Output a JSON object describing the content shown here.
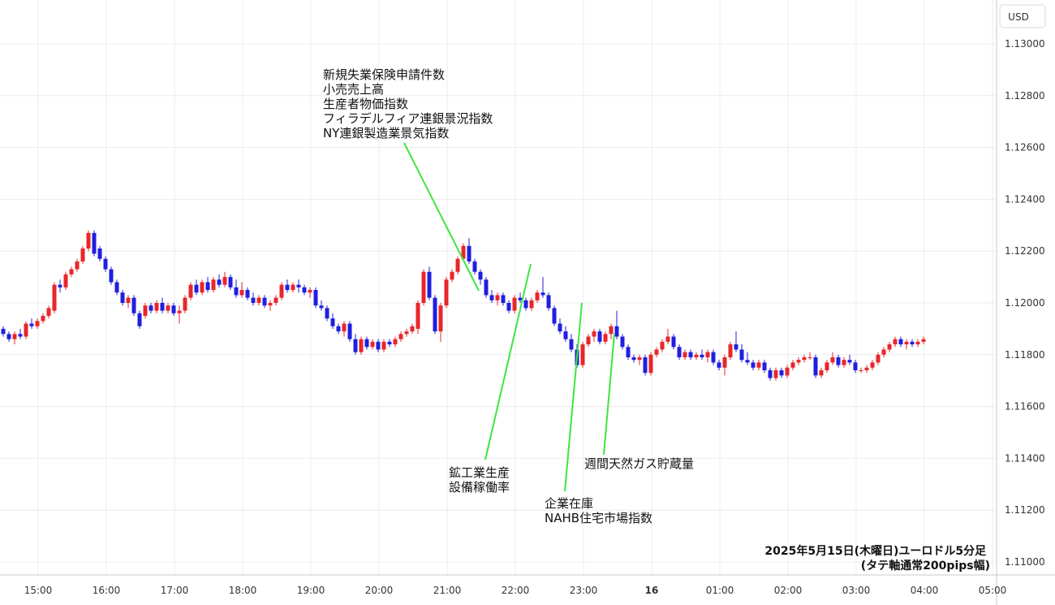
{
  "chart_data": {
    "type": "candlestick",
    "currency_label": "USD",
    "caption": [
      "2025年5月15日(木曜日)ユーロドル5分足",
      "(タテ軸通常200pips幅)"
    ],
    "ylim": [
      1.11,
      1.131
    ],
    "y_ticks": [
      "1.13000",
      "1.12800",
      "1.12600",
      "1.12400",
      "1.12200",
      "1.12000",
      "1.11800",
      "1.11600",
      "1.11400",
      "1.11200",
      "1.11000"
    ],
    "x_ticks": [
      "15:00",
      "16:00",
      "17:00",
      "18:00",
      "19:00",
      "20:00",
      "21:00",
      "22:00",
      "23:00",
      "16",
      "01:00",
      "02:00",
      "03:00",
      "04:00",
      "05:00"
    ],
    "bullish_color": "#e8262a",
    "bearish_color": "#1f1fe0",
    "line_color": "#3ee63e",
    "candles": [
      [
        1.119,
        1.1191,
        1.1187,
        1.1188
      ],
      [
        1.1188,
        1.1189,
        1.1185,
        1.1186
      ],
      [
        1.1186,
        1.1189,
        1.1184,
        1.1188
      ],
      [
        1.1188,
        1.119,
        1.1186,
        1.1187
      ],
      [
        1.1187,
        1.1193,
        1.1186,
        1.1192
      ],
      [
        1.1192,
        1.1194,
        1.119,
        1.1191
      ],
      [
        1.1191,
        1.1194,
        1.119,
        1.1193
      ],
      [
        1.1193,
        1.1196,
        1.1192,
        1.1195
      ],
      [
        1.1195,
        1.1199,
        1.1194,
        1.1198
      ],
      [
        1.1197,
        1.1208,
        1.1196,
        1.1207
      ],
      [
        1.1207,
        1.1209,
        1.1204,
        1.1206
      ],
      [
        1.1206,
        1.1212,
        1.1205,
        1.1211
      ],
      [
        1.1211,
        1.1214,
        1.121,
        1.1213
      ],
      [
        1.1213,
        1.1217,
        1.1212,
        1.1216
      ],
      [
        1.1216,
        1.1222,
        1.1215,
        1.1221
      ],
      [
        1.1221,
        1.1228,
        1.122,
        1.1227
      ],
      [
        1.1227,
        1.1228,
        1.1218,
        1.1219
      ],
      [
        1.1221,
        1.1222,
        1.1216,
        1.1217
      ],
      [
        1.1217,
        1.1218,
        1.1212,
        1.1213
      ],
      [
        1.1213,
        1.1214,
        1.1207,
        1.1208
      ],
      [
        1.1208,
        1.1209,
        1.1203,
        1.1204
      ],
      [
        1.1204,
        1.1205,
        1.1199,
        1.12
      ],
      [
        1.12,
        1.1203,
        1.1198,
        1.1202
      ],
      [
        1.1202,
        1.1203,
        1.1195,
        1.1196
      ],
      [
        1.1196,
        1.1197,
        1.119,
        1.1191
      ],
      [
        1.1195,
        1.12,
        1.1194,
        1.1199
      ],
      [
        1.1199,
        1.12,
        1.1196,
        1.1197
      ],
      [
        1.1197,
        1.1201,
        1.1196,
        1.12
      ],
      [
        1.12,
        1.1202,
        1.1196,
        1.1197
      ],
      [
        1.1197,
        1.12,
        1.1196,
        1.1199
      ],
      [
        1.1199,
        1.12,
        1.1195,
        1.1196
      ],
      [
        1.1196,
        1.1199,
        1.1192,
        1.1197
      ],
      [
        1.1197,
        1.1203,
        1.1196,
        1.1202
      ],
      [
        1.1202,
        1.1208,
        1.1201,
        1.1207
      ],
      [
        1.1207,
        1.1209,
        1.1203,
        1.1204
      ],
      [
        1.1204,
        1.1209,
        1.1203,
        1.1208
      ],
      [
        1.1208,
        1.121,
        1.1204,
        1.1205
      ],
      [
        1.1205,
        1.121,
        1.1204,
        1.1209
      ],
      [
        1.1209,
        1.1211,
        1.1206,
        1.1207
      ],
      [
        1.1207,
        1.1212,
        1.1206,
        1.121
      ],
      [
        1.121,
        1.1211,
        1.1205,
        1.1206
      ],
      [
        1.1206,
        1.1209,
        1.1202,
        1.1203
      ],
      [
        1.1203,
        1.1208,
        1.1202,
        1.1205
      ],
      [
        1.1205,
        1.1206,
        1.1201,
        1.1202
      ],
      [
        1.1202,
        1.1204,
        1.1199,
        1.12
      ],
      [
        1.12,
        1.1203,
        1.1199,
        1.1202
      ],
      [
        1.1202,
        1.1203,
        1.1198,
        1.1199
      ],
      [
        1.1199,
        1.1201,
        1.1197,
        1.12
      ],
      [
        1.12,
        1.1203,
        1.1199,
        1.1202
      ],
      [
        1.1202,
        1.1208,
        1.1201,
        1.1207
      ],
      [
        1.1207,
        1.1209,
        1.1204,
        1.1205
      ],
      [
        1.1205,
        1.1208,
        1.1204,
        1.1207
      ],
      [
        1.1207,
        1.1209,
        1.1204,
        1.1206
      ],
      [
        1.1206,
        1.1207,
        1.1203,
        1.1204
      ],
      [
        1.1204,
        1.1206,
        1.1202,
        1.1205
      ],
      [
        1.1205,
        1.1206,
        1.1198,
        1.1199
      ],
      [
        1.1199,
        1.1201,
        1.1197,
        1.1198
      ],
      [
        1.1198,
        1.1199,
        1.1193,
        1.1194
      ],
      [
        1.1194,
        1.1196,
        1.119,
        1.1191
      ],
      [
        1.1191,
        1.1192,
        1.1188,
        1.1189
      ],
      [
        1.1189,
        1.1193,
        1.1187,
        1.1192
      ],
      [
        1.1192,
        1.1193,
        1.1185,
        1.1186
      ],
      [
        1.1186,
        1.1188,
        1.118,
        1.1181
      ],
      [
        1.1181,
        1.1187,
        1.118,
        1.1186
      ],
      [
        1.1186,
        1.1187,
        1.1182,
        1.1183
      ],
      [
        1.1183,
        1.1186,
        1.1182,
        1.1185
      ],
      [
        1.1185,
        1.1186,
        1.1181,
        1.1182
      ],
      [
        1.1182,
        1.1186,
        1.1181,
        1.1185
      ],
      [
        1.1185,
        1.1186,
        1.1183,
        1.1184
      ],
      [
        1.1184,
        1.1187,
        1.1183,
        1.1186
      ],
      [
        1.1186,
        1.1189,
        1.1185,
        1.1188
      ],
      [
        1.1188,
        1.119,
        1.1187,
        1.1189
      ],
      [
        1.1189,
        1.1192,
        1.1188,
        1.1191
      ],
      [
        1.119,
        1.1201,
        1.1188,
        1.12
      ],
      [
        1.12,
        1.1213,
        1.1199,
        1.1212
      ],
      [
        1.1212,
        1.1214,
        1.1201,
        1.1202
      ],
      [
        1.1202,
        1.1203,
        1.1188,
        1.1189
      ],
      [
        1.1189,
        1.12,
        1.1185,
        1.1199
      ],
      [
        1.1199,
        1.121,
        1.1198,
        1.1209
      ],
      [
        1.1209,
        1.1213,
        1.1208,
        1.1212
      ],
      [
        1.1212,
        1.1218,
        1.1211,
        1.1217
      ],
      [
        1.1217,
        1.1223,
        1.1216,
        1.1222
      ],
      [
        1.1222,
        1.1225,
        1.1215,
        1.1216
      ],
      [
        1.1216,
        1.1217,
        1.1211,
        1.1212
      ],
      [
        1.1212,
        1.1213,
        1.1207,
        1.1209
      ],
      [
        1.1209,
        1.121,
        1.1202,
        1.1203
      ],
      [
        1.1203,
        1.1205,
        1.12,
        1.1201
      ],
      [
        1.1201,
        1.1204,
        1.1199,
        1.1203
      ],
      [
        1.1203,
        1.1204,
        1.1199,
        1.12
      ],
      [
        1.12,
        1.1201,
        1.1196,
        1.1197
      ],
      [
        1.1197,
        1.1203,
        1.1196,
        1.1202
      ],
      [
        1.1202,
        1.1204,
        1.12,
        1.1201
      ],
      [
        1.1201,
        1.1202,
        1.1197,
        1.1198
      ],
      [
        1.1198,
        1.1202,
        1.1197,
        1.1201
      ],
      [
        1.1201,
        1.1205,
        1.12,
        1.1204
      ],
      [
        1.1204,
        1.121,
        1.1202,
        1.1203
      ],
      [
        1.1203,
        1.1204,
        1.1197,
        1.1198
      ],
      [
        1.1198,
        1.1199,
        1.1191,
        1.1192
      ],
      [
        1.1192,
        1.1194,
        1.1188,
        1.1189
      ],
      [
        1.1189,
        1.1191,
        1.1185,
        1.1186
      ],
      [
        1.1186,
        1.1188,
        1.1181,
        1.1182
      ],
      [
        1.1182,
        1.1184,
        1.1175,
        1.1176
      ],
      [
        1.1176,
        1.1185,
        1.1175,
        1.1184
      ],
      [
        1.1184,
        1.1188,
        1.1183,
        1.1187
      ],
      [
        1.1187,
        1.119,
        1.1185,
        1.1189
      ],
      [
        1.1189,
        1.119,
        1.1184,
        1.1185
      ],
      [
        1.1185,
        1.1189,
        1.1184,
        1.1188
      ],
      [
        1.1188,
        1.1192,
        1.1186,
        1.1191
      ],
      [
        1.1191,
        1.1197,
        1.1186,
        1.1187
      ],
      [
        1.1187,
        1.1188,
        1.1182,
        1.1183
      ],
      [
        1.1183,
        1.1184,
        1.1178,
        1.1179
      ],
      [
        1.1179,
        1.118,
        1.1177,
        1.1178
      ],
      [
        1.1178,
        1.118,
        1.1176,
        1.1179
      ],
      [
        1.1179,
        1.118,
        1.1172,
        1.1173
      ],
      [
        1.1173,
        1.1181,
        1.1172,
        1.118
      ],
      [
        1.118,
        1.1183,
        1.1179,
        1.1182
      ],
      [
        1.1182,
        1.1186,
        1.1181,
        1.1185
      ],
      [
        1.1185,
        1.119,
        1.1184,
        1.1187
      ],
      [
        1.1187,
        1.1188,
        1.1182,
        1.1183
      ],
      [
        1.1183,
        1.1184,
        1.1178,
        1.1179
      ],
      [
        1.1179,
        1.1182,
        1.1178,
        1.1181
      ],
      [
        1.1181,
        1.1182,
        1.1178,
        1.1179
      ],
      [
        1.1179,
        1.1181,
        1.1178,
        1.118
      ],
      [
        1.118,
        1.1182,
        1.1178,
        1.1179
      ],
      [
        1.1179,
        1.1182,
        1.1177,
        1.1181
      ],
      [
        1.1181,
        1.1182,
        1.1176,
        1.1177
      ],
      [
        1.1177,
        1.1178,
        1.1174,
        1.1175
      ],
      [
        1.1175,
        1.118,
        1.1172,
        1.1179
      ],
      [
        1.1179,
        1.1185,
        1.1178,
        1.1184
      ],
      [
        1.1184,
        1.1189,
        1.1181,
        1.1182
      ],
      [
        1.1182,
        1.1184,
        1.1177,
        1.1178
      ],
      [
        1.1178,
        1.1181,
        1.1176,
        1.1177
      ],
      [
        1.1177,
        1.1178,
        1.1174,
        1.1175
      ],
      [
        1.1175,
        1.1178,
        1.1174,
        1.1177
      ],
      [
        1.1177,
        1.1178,
        1.1173,
        1.1174
      ],
      [
        1.1174,
        1.1175,
        1.117,
        1.1171
      ],
      [
        1.1171,
        1.1175,
        1.117,
        1.1174
      ],
      [
        1.1174,
        1.1175,
        1.1171,
        1.1172
      ],
      [
        1.1172,
        1.1176,
        1.1171,
        1.1175
      ],
      [
        1.1175,
        1.1178,
        1.1174,
        1.1177
      ],
      [
        1.1177,
        1.1179,
        1.1176,
        1.1178
      ],
      [
        1.1178,
        1.118,
        1.1177,
        1.1179
      ],
      [
        1.1179,
        1.1181,
        1.1178,
        1.1179
      ],
      [
        1.1179,
        1.118,
        1.1171,
        1.1172
      ],
      [
        1.1172,
        1.1175,
        1.1171,
        1.1174
      ],
      [
        1.1174,
        1.1178,
        1.1173,
        1.1177
      ],
      [
        1.1177,
        1.1181,
        1.1176,
        1.1179
      ],
      [
        1.1179,
        1.118,
        1.1175,
        1.1176
      ],
      [
        1.1176,
        1.1179,
        1.1175,
        1.1178
      ],
      [
        1.1178,
        1.118,
        1.1176,
        1.1177
      ],
      [
        1.1177,
        1.1178,
        1.1173,
        1.1174
      ],
      [
        1.1174,
        1.1175,
        1.1173,
        1.1174
      ],
      [
        1.1174,
        1.1176,
        1.1173,
        1.1175
      ],
      [
        1.1175,
        1.1178,
        1.1174,
        1.1177
      ],
      [
        1.1177,
        1.1181,
        1.1176,
        1.118
      ],
      [
        1.118,
        1.1183,
        1.1179,
        1.1182
      ],
      [
        1.1182,
        1.1185,
        1.1181,
        1.1184
      ],
      [
        1.1184,
        1.1187,
        1.1183,
        1.1186
      ],
      [
        1.1186,
        1.1187,
        1.1183,
        1.1184
      ],
      [
        1.1184,
        1.1186,
        1.1182,
        1.1185
      ],
      [
        1.1185,
        1.1186,
        1.1183,
        1.1184
      ],
      [
        1.1184,
        1.1186,
        1.1183,
        1.1185
      ],
      [
        1.1185,
        1.1187,
        1.1184,
        1.1186
      ]
    ],
    "annotations": [
      {
        "id": "us-data-2130",
        "lines": [
          "新規失業保険申請件数",
          "小売売上高",
          "生産者物価指数",
          "フィラデルフィア連銀景況指数",
          "NY連銀製造業景気指数"
        ],
        "time": "21:30"
      },
      {
        "id": "industrial-2215",
        "lines": [
          "鉱工業生産",
          "設備稼働率"
        ],
        "time": "22:15"
      },
      {
        "id": "inventories-2300",
        "lines": [
          "企業在庫",
          "NAHB住宅市場指数"
        ],
        "time": "23:00"
      },
      {
        "id": "gas-2330",
        "lines": [
          "週間天然ガス貯蔵量"
        ],
        "time": "23:30"
      }
    ]
  }
}
